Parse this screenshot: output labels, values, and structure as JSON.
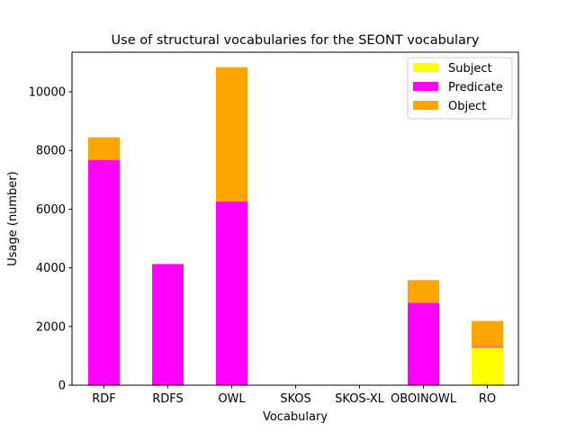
{
  "chart_data": {
    "type": "bar",
    "stacked": true,
    "title": "Use of structural vocabularies for the SEONT vocabulary",
    "xlabel": "Vocabulary",
    "ylabel": "Usage (number)",
    "ylim": [
      0,
      11350
    ],
    "yticks": [
      0,
      2000,
      4000,
      6000,
      8000,
      10000
    ],
    "categories": [
      "RDF",
      "RDFS",
      "OWL",
      "SKOS",
      "SKOS-XL",
      "OBOINOWL",
      "RO"
    ],
    "series": [
      {
        "name": "Subject",
        "color": "#ffff00",
        "values": [
          0,
          0,
          0,
          0,
          0,
          0,
          1280
        ]
      },
      {
        "name": "Predicate",
        "color": "#ff00ff",
        "values": [
          7680,
          4130,
          6260,
          0,
          0,
          2810,
          30
        ]
      },
      {
        "name": "Object",
        "color": "#ffa500",
        "values": [
          770,
          0,
          4580,
          0,
          0,
          770,
          880
        ]
      }
    ],
    "legend_position": "top-right",
    "grid": false
  }
}
